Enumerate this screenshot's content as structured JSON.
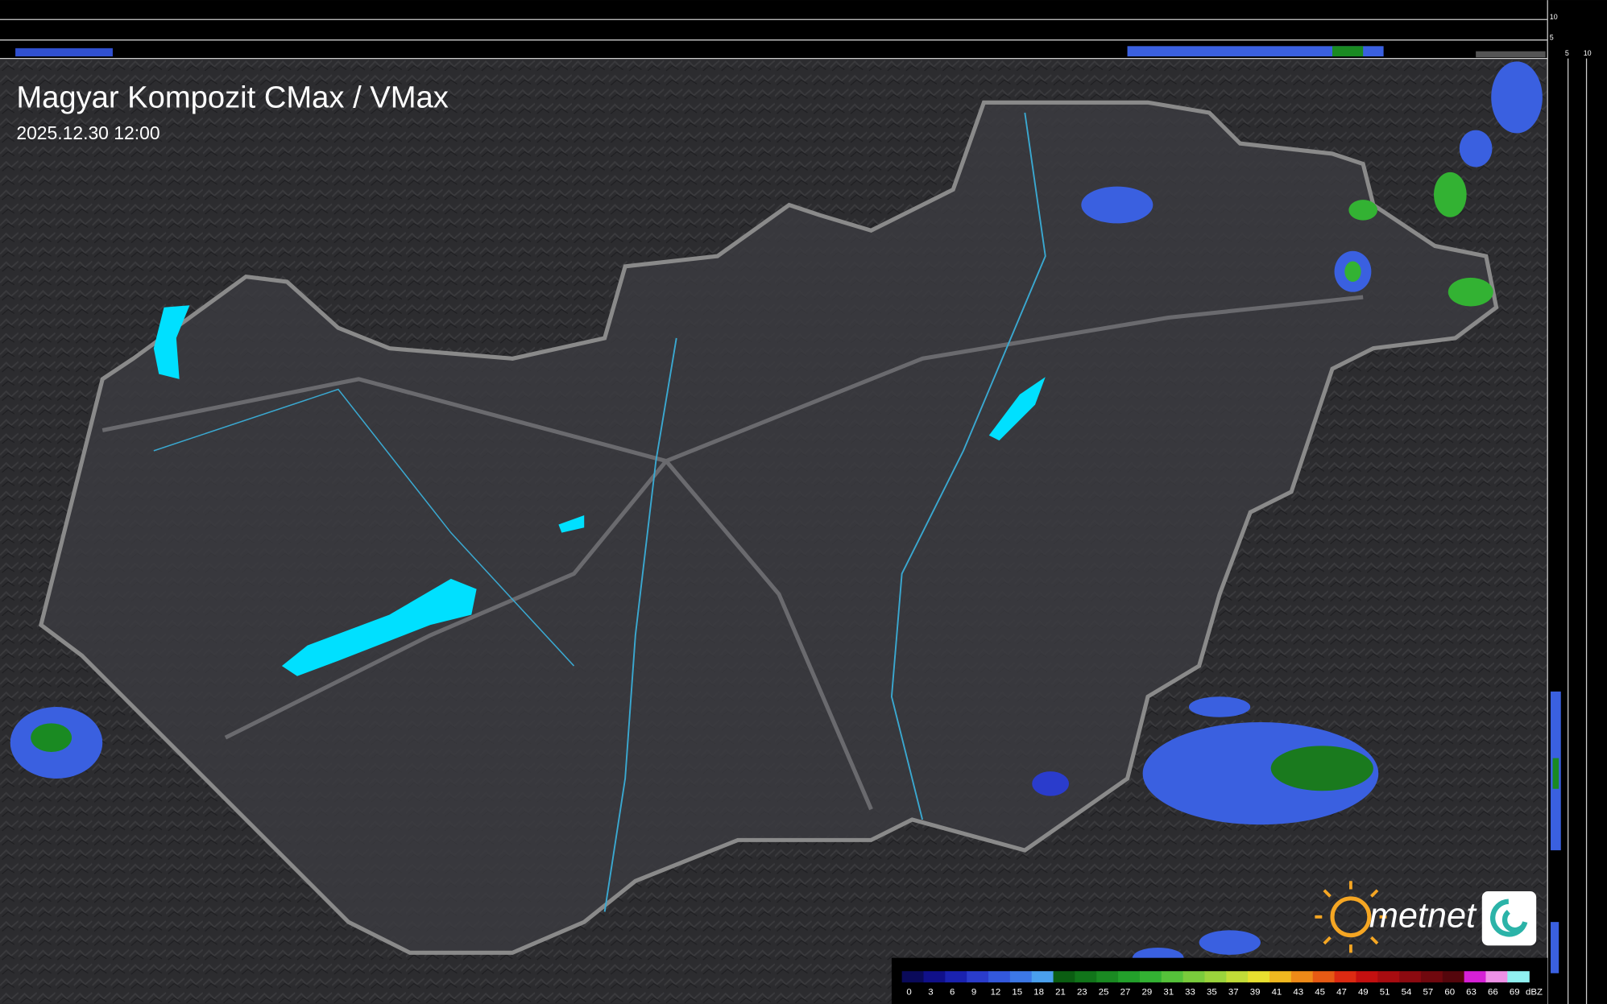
{
  "header": {
    "title": "Magyar Kompozit CMax / VMax",
    "timestamp": "2025.12.30 12:00"
  },
  "side_profile": {
    "right_labels": [
      "10",
      "5"
    ],
    "bottom_labels": [
      "5",
      "10"
    ]
  },
  "logo": {
    "text": "metnet"
  },
  "legend": {
    "unit": "dBZ",
    "steps": [
      {
        "value": 0,
        "color": "#0a0a5a"
      },
      {
        "value": 3,
        "color": "#10108a"
      },
      {
        "value": 6,
        "color": "#1a22b0"
      },
      {
        "value": 9,
        "color": "#2a3ccc"
      },
      {
        "value": 12,
        "color": "#3358dd"
      },
      {
        "value": 15,
        "color": "#3c78e6"
      },
      {
        "value": 18,
        "color": "#4aa0ee"
      },
      {
        "value": 21,
        "color": "#0b5e12"
      },
      {
        "value": 23,
        "color": "#11751a"
      },
      {
        "value": 25,
        "color": "#1a8a22"
      },
      {
        "value": 27,
        "color": "#23a02b"
      },
      {
        "value": 29,
        "color": "#33b233"
      },
      {
        "value": 31,
        "color": "#55c23a"
      },
      {
        "value": 33,
        "color": "#7acc3c"
      },
      {
        "value": 35,
        "color": "#9bd43c"
      },
      {
        "value": 37,
        "color": "#c2dc38"
      },
      {
        "value": 39,
        "color": "#e8e030"
      },
      {
        "value": 41,
        "color": "#f0b820"
      },
      {
        "value": 43,
        "color": "#ee8a18"
      },
      {
        "value": 45,
        "color": "#e65a14"
      },
      {
        "value": 47,
        "color": "#dc2a12"
      },
      {
        "value": 49,
        "color": "#c41010"
      },
      {
        "value": 51,
        "color": "#a80c10"
      },
      {
        "value": 54,
        "color": "#8c0a10"
      },
      {
        "value": 57,
        "color": "#70080e"
      },
      {
        "value": 60,
        "color": "#54060c"
      },
      {
        "value": 63,
        "color": "#d620d6"
      },
      {
        "value": 66,
        "color": "#ee90e6"
      },
      {
        "value": 69,
        "color": "#90f0f0"
      }
    ]
  }
}
